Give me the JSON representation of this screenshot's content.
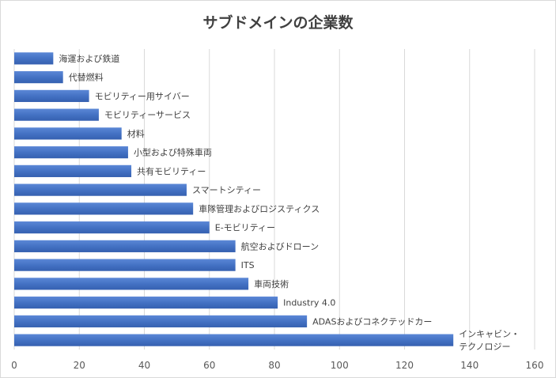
{
  "chart_data": {
    "type": "bar",
    "orientation": "horizontal",
    "title": "サブドメインの企業数",
    "xlabel": "",
    "ylabel": "",
    "xlim": [
      0,
      160
    ],
    "xticks": [
      0,
      20,
      40,
      60,
      80,
      100,
      120,
      140,
      160
    ],
    "grid": true,
    "bar_color": "#4472c4",
    "categories": [
      "海運および鉄道",
      "代替燃料",
      "モビリティー用サイバー",
      "モビリティーサービス",
      "材料",
      "小型および特殊車両",
      "共有モビリティー",
      "スマートシティー",
      "車隊管理およびロジスティクス",
      "E-モビリティー",
      "航空およびドローン",
      "ITS",
      "車両技術",
      "Industry 4.0",
      "ADASおよびコネクテッドカー",
      "インキャビン・テクノロジー"
    ],
    "category_lines": [
      [
        "海運および鉄道"
      ],
      [
        "代替燃料"
      ],
      [
        "モビリティー用サイバー"
      ],
      [
        "モビリティーサービス"
      ],
      [
        "材料"
      ],
      [
        "小型および特殊車両"
      ],
      [
        "共有モビリティー"
      ],
      [
        "スマートシティー"
      ],
      [
        "車隊管理およびロジスティクス"
      ],
      [
        "E-モビリティー"
      ],
      [
        "航空およびドローン"
      ],
      [
        "ITS"
      ],
      [
        "車両技術"
      ],
      [
        "Industry 4.0"
      ],
      [
        "ADASおよびコネクテッドカー"
      ],
      [
        "インキャビン・",
        "テクノロジー"
      ]
    ],
    "values": [
      12,
      15,
      23,
      26,
      33,
      35,
      36,
      53,
      55,
      60,
      68,
      68,
      72,
      81,
      90,
      135
    ]
  }
}
